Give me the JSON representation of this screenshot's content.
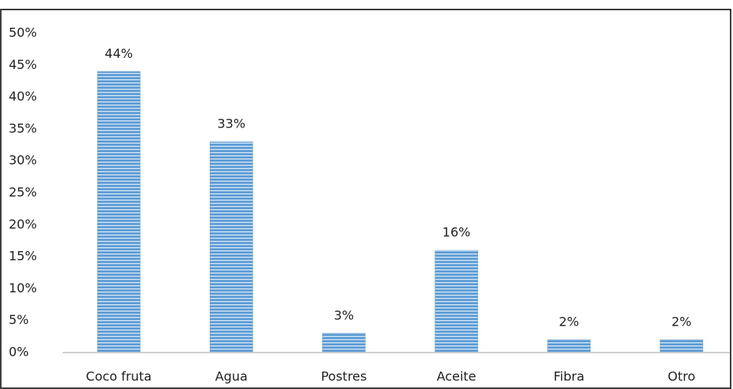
{
  "chart_data": {
    "type": "bar",
    "categories": [
      "Coco fruta",
      "Agua",
      "Postres",
      "Aceite",
      "Fibra",
      "Otro"
    ],
    "values": [
      44,
      33,
      3,
      16,
      2,
      2
    ],
    "value_labels": [
      "44%",
      "33%",
      "3%",
      "16%",
      "2%",
      "2%"
    ],
    "color": "#5b9bd5",
    "ylim": [
      0,
      50
    ],
    "yticks": [
      {
        "value": 0,
        "label": "0%"
      },
      {
        "value": 5,
        "label": "5%"
      },
      {
        "value": 10,
        "label": "10%"
      },
      {
        "value": 15,
        "label": "15%"
      },
      {
        "value": 20,
        "label": "20%"
      },
      {
        "value": 25,
        "label": "25%"
      },
      {
        "value": 30,
        "label": "30%"
      },
      {
        "value": 35,
        "label": "35%"
      },
      {
        "value": 40,
        "label": "40%"
      },
      {
        "value": 45,
        "label": "45%"
      },
      {
        "value": 50,
        "label": "50%"
      }
    ],
    "grid": false
  }
}
